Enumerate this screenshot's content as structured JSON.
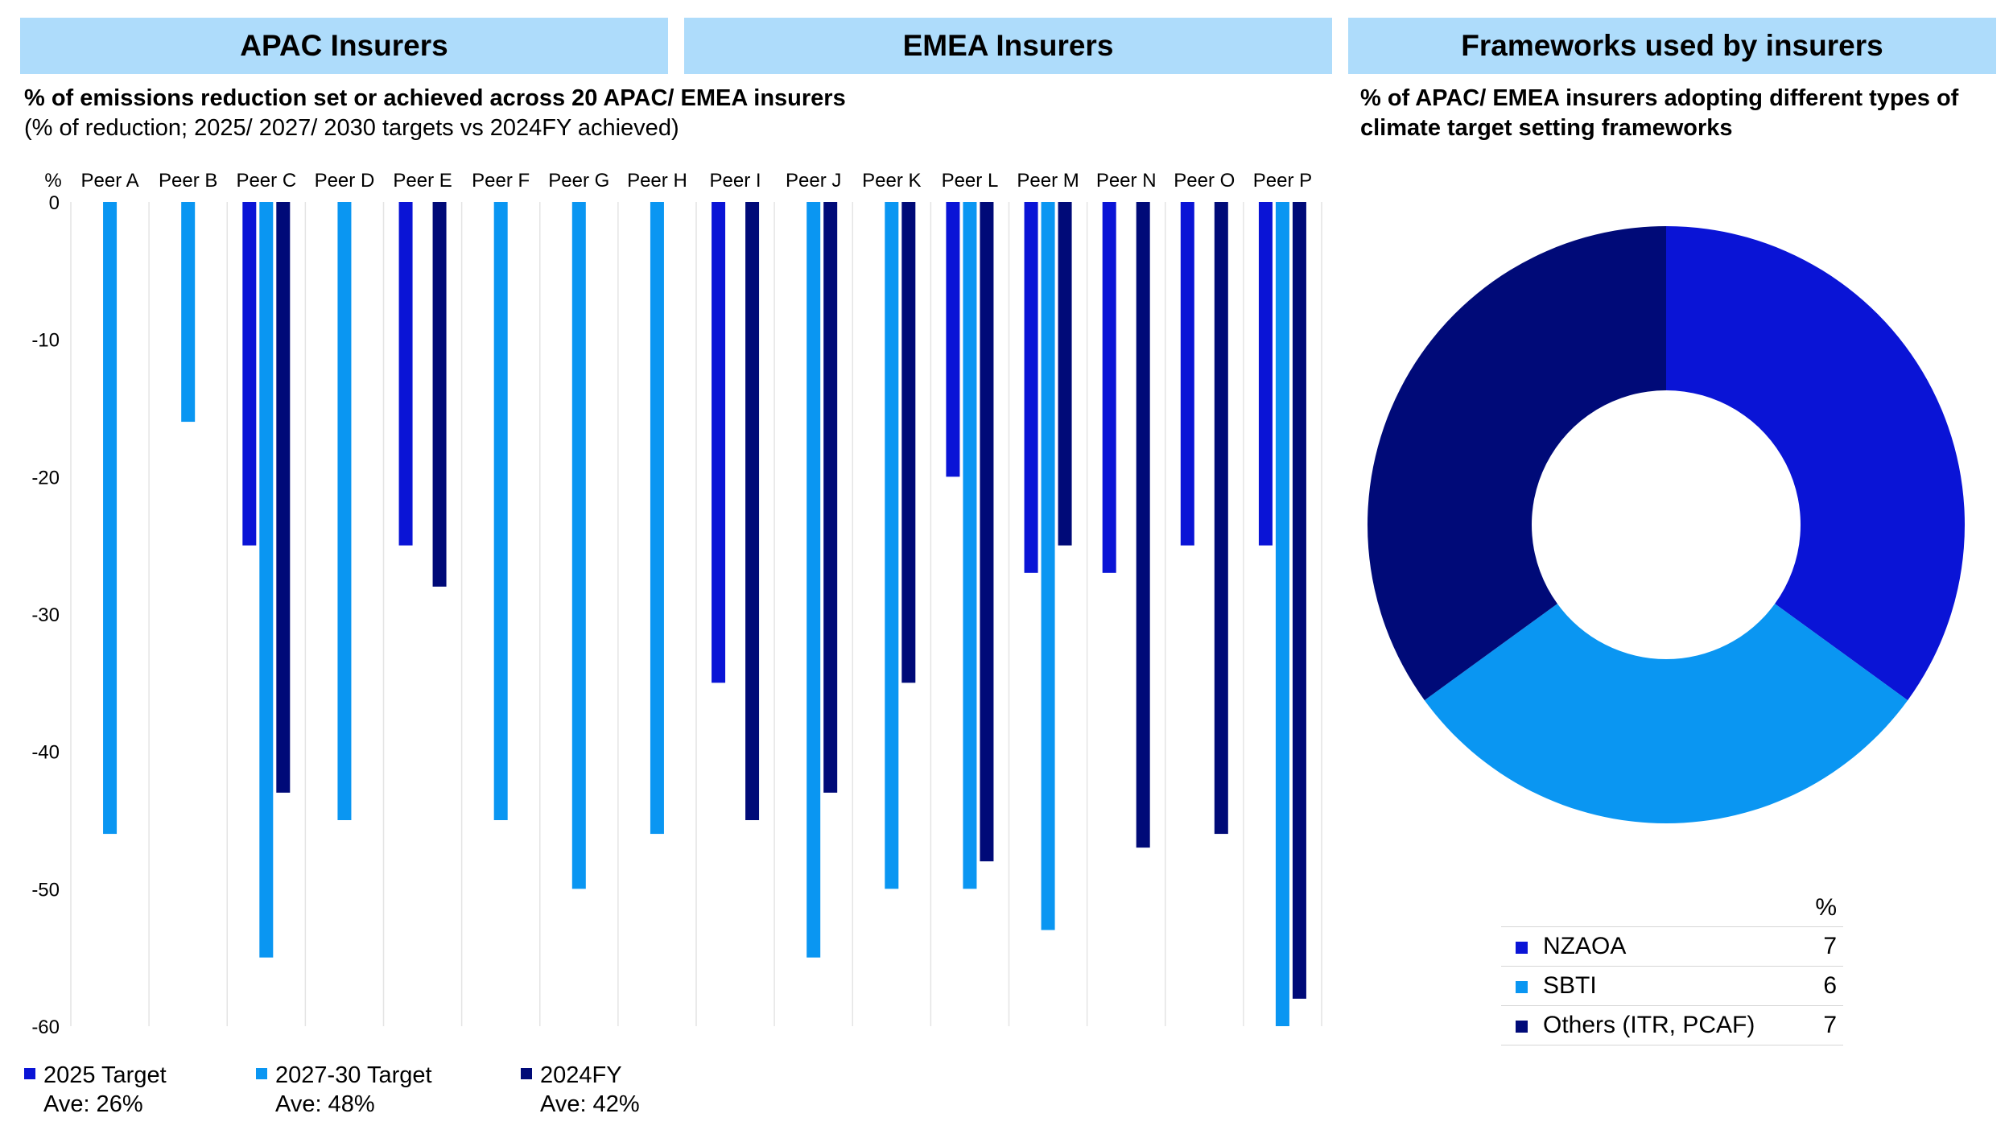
{
  "headers": {
    "apac": "APAC Insurers",
    "emea": "EMEA Insurers",
    "frameworks": "Frameworks used by insurers"
  },
  "left_panel": {
    "title": "% of emissions reduction set or achieved across 20 APAC/ EMEA insurers",
    "subtitle": "(% of reduction; 2025/ 2027/ 2030 targets vs 2024FY achieved)",
    "y_unit": "%"
  },
  "right_panel": {
    "title": "% of APAC/ EMEA insurers adopting different types of climate target setting frameworks"
  },
  "legend": [
    {
      "label": "2025 Target",
      "ave": "Ave: 26%",
      "color": "#0a14d6"
    },
    {
      "label": "2027-30 Target",
      "ave": "Ave: 48%",
      "color": "#0a96f2"
    },
    {
      "label": "2024FY",
      "ave": "Ave: 42%",
      "color": "#000a78"
    }
  ],
  "chart_data": [
    {
      "type": "bar",
      "categories": [
        "Peer A",
        "Peer B",
        "Peer C",
        "Peer D",
        "Peer E",
        "Peer F",
        "Peer G",
        "Peer H",
        "Peer I",
        "Peer J",
        "Peer K",
        "Peer L",
        "Peer M",
        "Peer N",
        "Peer O",
        "Peer P"
      ],
      "series": [
        {
          "name": "2025 Target",
          "values": [
            null,
            null,
            -25,
            null,
            -25,
            null,
            null,
            null,
            -35,
            null,
            null,
            -20,
            -27,
            -27,
            -25,
            -25
          ],
          "color": "#0a14d6"
        },
        {
          "name": "2027-30 Target",
          "values": [
            -46,
            -16,
            -55,
            -45,
            null,
            -45,
            -50,
            -46,
            null,
            -55,
            -50,
            -50,
            -53,
            null,
            null,
            -60
          ],
          "color": "#0a96f2"
        },
        {
          "name": "2024FY",
          "values": [
            null,
            null,
            -43,
            null,
            -28,
            null,
            null,
            null,
            -45,
            -43,
            -35,
            -48,
            -25,
            -47,
            -46,
            -58
          ],
          "color": "#000a78"
        }
      ],
      "ylim": [
        -60,
        0
      ],
      "yticks": [
        0,
        -10,
        -20,
        -30,
        -40,
        -50,
        -60
      ],
      "ylabel": "%",
      "grid": "vertical separators",
      "legend": "bottom"
    },
    {
      "type": "pie",
      "donut": true,
      "header": "%",
      "slices": [
        {
          "label": "NZAOA",
          "value": 7,
          "color": "#0a14d6"
        },
        {
          "label": "SBTI",
          "value": 6,
          "color": "#0a96f2"
        },
        {
          "label": "Others (ITR, PCAF)",
          "value": 7,
          "color": "#000a78"
        }
      ]
    }
  ]
}
